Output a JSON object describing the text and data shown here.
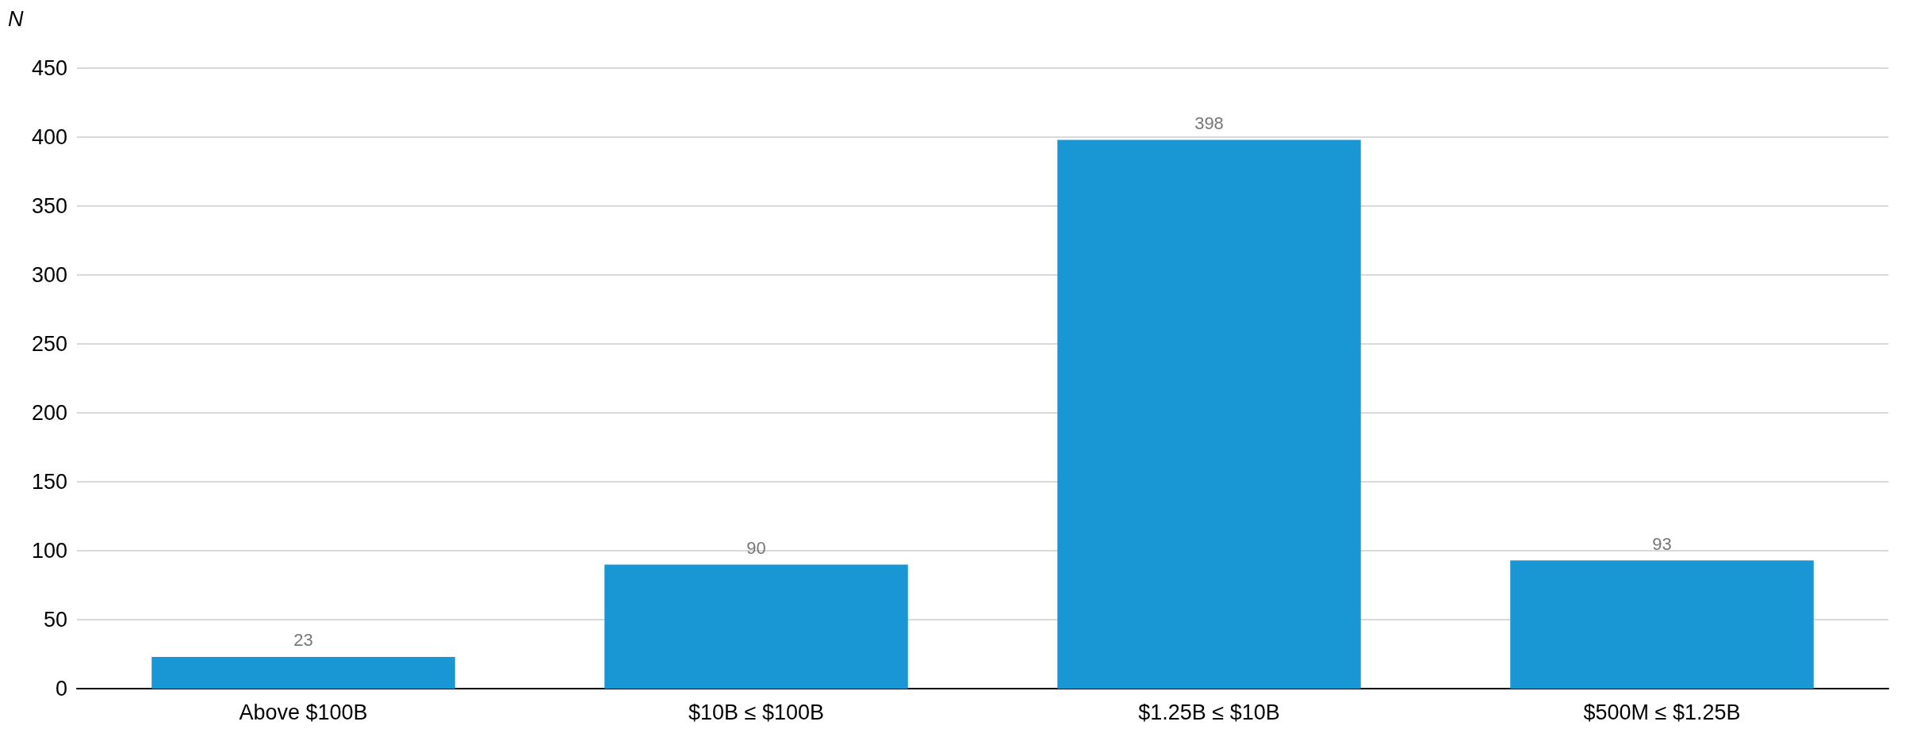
{
  "chart_data": {
    "type": "bar",
    "ylabel": "N",
    "categories": [
      "Above $100B",
      "$10B ≤ $100B",
      "$1.25B ≤ $10B",
      "$500M ≤ $1.25B"
    ],
    "values": [
      23,
      90,
      398,
      93
    ],
    "color": "#1996d4",
    "ylim": [
      0,
      450
    ],
    "yticks": [
      0,
      50,
      100,
      150,
      200,
      250,
      300,
      350,
      400,
      450
    ],
    "grid": "y",
    "data_labels": true
  }
}
